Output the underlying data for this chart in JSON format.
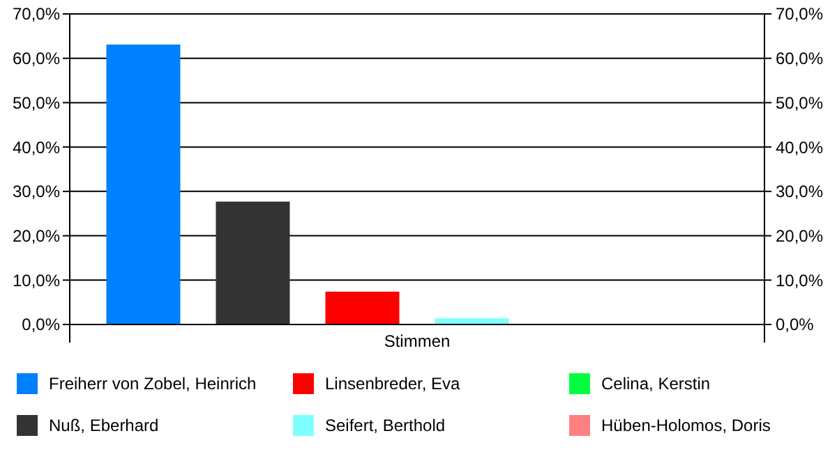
{
  "chart_data": {
    "type": "bar",
    "categories": [
      "Stimmen"
    ],
    "series": [
      {
        "name": "Freiherr von Zobel, Heinrich",
        "color": "#0080ff",
        "values": [
          63.1
        ]
      },
      {
        "name": "Nuß, Eberhard",
        "color": "#333333",
        "values": [
          27.7
        ]
      },
      {
        "name": "Linsenbreder, Eva",
        "color": "#ff0000",
        "values": [
          7.4
        ]
      },
      {
        "name": "Seifert, Berthold",
        "color": "#80ffff",
        "values": [
          1.4
        ]
      },
      {
        "name": "Celina, Kerstin",
        "color": "#00ff40",
        "values": [
          0
        ]
      },
      {
        "name": "Hüben-Holomos, Doris",
        "color": "#ff8080",
        "values": [
          0
        ]
      }
    ],
    "ylim": [
      0,
      70
    ],
    "yticks": [
      {
        "value": 0,
        "label": "0,0%"
      },
      {
        "value": 10,
        "label": "10,0%"
      },
      {
        "value": 20,
        "label": "20,0%"
      },
      {
        "value": 30,
        "label": "30,0%"
      },
      {
        "value": 40,
        "label": "40,0%"
      },
      {
        "value": 50,
        "label": "50,0%"
      },
      {
        "value": 60,
        "label": "60,0%"
      },
      {
        "value": 70,
        "label": "70,0%"
      }
    ],
    "grid": "y",
    "legend": "bottom"
  }
}
